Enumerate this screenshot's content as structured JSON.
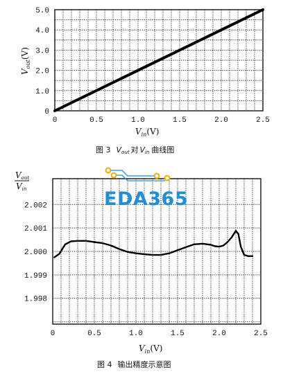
{
  "chart_data": [
    {
      "type": "line",
      "x_ticks": [
        "0",
        "0.5",
        "1.0",
        "1.5",
        "2.0",
        "2.5"
      ],
      "y_ticks": [
        "0",
        "1.0",
        "2.0",
        "3.0",
        "4.0",
        "5.0"
      ],
      "xlabel_main": "V",
      "xlabel_sub": "in",
      "xlabel_unit": "(V)",
      "ylabel_main": "V",
      "ylabel_sub": "out",
      "ylabel_unit": "(V)",
      "xlim": [
        0,
        2.5
      ],
      "ylim": [
        0,
        5.0
      ],
      "grid": true,
      "series": [
        {
          "x": [
            0,
            0.5,
            1.0,
            1.5,
            2.0,
            2.5
          ],
          "y": [
            0,
            1.0,
            2.0,
            3.0,
            4.0,
            5.0
          ]
        }
      ],
      "caption": {
        "fig": "图 3",
        "v1_main": "V",
        "v1_sub": "out",
        "mid": "对",
        "v2_main": "V",
        "v2_sub": "in",
        "tail": "曲线图"
      }
    },
    {
      "type": "line",
      "x_ticks": [
        "0",
        "0.5",
        "1.0",
        "1.5",
        "2.0",
        "2.5"
      ],
      "y_ticks": [
        "2.002",
        "2.001",
        "2.000",
        "1.999",
        "1.998"
      ],
      "xlabel_main": "V",
      "xlabel_sub": "in",
      "xlabel_unit": "(V)",
      "ylabel_num_main": "V",
      "ylabel_num_sub": "out",
      "ylabel_den_main": "V",
      "ylabel_den_sub": "in",
      "xlim": [
        0,
        2.5
      ],
      "ylim": [
        1.9969,
        2.0031
      ],
      "grid": true,
      "series": [
        {
          "x": [
            0.02,
            0.08,
            0.15,
            0.22,
            0.3,
            0.4,
            0.5,
            0.6,
            0.7,
            0.8,
            0.9,
            1.0,
            1.1,
            1.2,
            1.3,
            1.4,
            1.5,
            1.6,
            1.7,
            1.8,
            1.9,
            1.95,
            2.0,
            2.05,
            2.1,
            2.15,
            2.2,
            2.23,
            2.26,
            2.3,
            2.35,
            2.4
          ],
          "y": [
            1.99975,
            1.9999,
            2.0003,
            2.00043,
            2.00045,
            2.00045,
            2.0004,
            2.00035,
            2.00025,
            2.0001,
            1.99998,
            1.99992,
            1.99988,
            1.99985,
            1.99985,
            1.99992,
            2.00005,
            2.00018,
            2.0003,
            2.00033,
            2.00028,
            2.00022,
            2.0002,
            2.00025,
            2.0004,
            2.0006,
            2.00088,
            2.00075,
            2.0002,
            1.99985,
            1.9998,
            1.9998
          ]
        }
      ],
      "caption": {
        "fig": "图 4",
        "text": "输出精度示意图"
      }
    }
  ],
  "watermark": {
    "text": "EDA365",
    "dot_color": "#f2a900",
    "text_color": "#1f8fd6"
  }
}
